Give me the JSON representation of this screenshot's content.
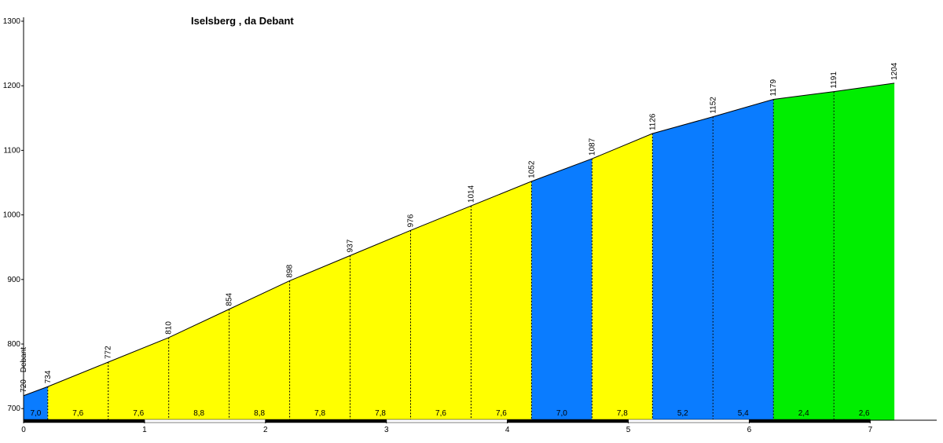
{
  "chart_data": {
    "type": "elevation-profile",
    "title": "Iselsberg , da Debant",
    "x": [
      0,
      0.2,
      0.7,
      1.2,
      1.7,
      2.2,
      2.7,
      3.2,
      3.7,
      4.2,
      4.7,
      5.2,
      5.7,
      6.2,
      6.7,
      7.2
    ],
    "values": [
      720,
      734,
      772,
      810,
      854,
      898,
      937,
      976,
      1014,
      1052,
      1087,
      1126,
      1152,
      1179,
      1191,
      1204
    ],
    "value_labels": [
      "720 - Debant",
      "734",
      "772",
      "810",
      "854",
      "898",
      "937",
      "976",
      "1014",
      "1052",
      "1087",
      "1126",
      "1152",
      "1179",
      "1191",
      "1204"
    ],
    "segment_grades": [
      "7,0",
      "7,6",
      "7,6",
      "8,8",
      "8,8",
      "7,8",
      "7,8",
      "7,6",
      "7,6",
      "7,0",
      "7,8",
      "5,2",
      "5,4",
      "2,4",
      "2,6"
    ],
    "segment_colors": [
      "#0a7cff",
      "#ffff00",
      "#ffff00",
      "#ffff00",
      "#ffff00",
      "#ffff00",
      "#ffff00",
      "#ffff00",
      "#ffff00",
      "#0a7cff",
      "#ffff00",
      "#0a7cff",
      "#0a7cff",
      "#00ee00",
      "#00ee00"
    ],
    "xlim": [
      0,
      7.55
    ],
    "xticks": [
      0,
      1,
      2,
      3,
      4,
      5,
      6,
      7
    ],
    "ylim": [
      682,
      1300
    ],
    "yticks": [
      700,
      800,
      900,
      1000,
      1100,
      1200,
      1300
    ]
  }
}
